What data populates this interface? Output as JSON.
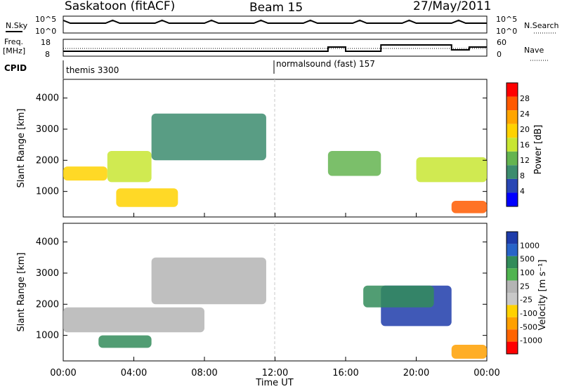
{
  "header": {
    "station": "Saskatoon (fitACF)",
    "beam": "Beam 15",
    "date": "27/May/2011"
  },
  "sky_panel": {
    "left_label": "N.Sky",
    "left_ticks": [
      "10^5",
      "10^0"
    ],
    "right_ticks": [
      "10^5",
      "10^0"
    ],
    "right_label": "N.Search"
  },
  "freq_panel": {
    "left_label_line1": "Freq.",
    "left_label_line2": "[MHz]",
    "left_ticks": [
      "18",
      "8"
    ],
    "right_ticks": [
      "60",
      "0"
    ],
    "right_label": "Nave"
  },
  "cpid": {
    "label": "CPID",
    "segments": [
      "themis 3300",
      "normalsound (fast) 157"
    ]
  },
  "power_panel": {
    "ylabel": "Slant Range [km]",
    "yticks": [
      "4000",
      "3000",
      "2000",
      "1000"
    ],
    "colorbar_label": "Power [dB]",
    "colorbar_ticks": [
      "28",
      "24",
      "20",
      "16",
      "12",
      "8",
      "4"
    ],
    "colorbar_colors": [
      "#ff0000",
      "#ff5a00",
      "#ffa500",
      "#ffd200",
      "#c8e632",
      "#64b450",
      "#3c8c6e",
      "#2846b4",
      "#0000ff"
    ]
  },
  "velocity_panel": {
    "ylabel": "Slant Range [km]",
    "yticks": [
      "4000",
      "3000",
      "2000",
      "1000"
    ],
    "colorbar_label": "Velocity [m s⁻¹]",
    "colorbar_ticks": [
      "1000",
      "500",
      "100",
      "25",
      "-25",
      "-100",
      "-500",
      "-1000"
    ],
    "colorbar_colors": [
      "#1e3caa",
      "#2864c8",
      "#328c5a",
      "#50b450",
      "#b4b4b4",
      "#c8c8c8",
      "#ffd200",
      "#ffa000",
      "#ff6400",
      "#ff0000"
    ]
  },
  "x_axis": {
    "label": "Time UT",
    "ticks": [
      "00:00",
      "04:00",
      "08:00",
      "12:00",
      "16:00",
      "20:00",
      "00:00"
    ]
  },
  "chart_data": {
    "type": "heatmap",
    "x_range_hours": [
      0,
      24
    ],
    "y_range_km": [
      180,
      4600
    ],
    "power_regions": [
      {
        "name": "band-morning",
        "t0": 0,
        "t1": 2.5,
        "r0": 1350,
        "r1": 1800,
        "level": 20
      },
      {
        "name": "band-ramp",
        "t0": 2.5,
        "t1": 5.0,
        "r0": 1300,
        "r1": 2300,
        "level": 14
      },
      {
        "name": "arc-upper",
        "t0": 5.0,
        "t1": 11.5,
        "r0": 2000,
        "r1": 3500,
        "level": 6
      },
      {
        "name": "low-patch",
        "t0": 3.0,
        "t1": 6.5,
        "r0": 500,
        "r1": 1100,
        "level": 18
      },
      {
        "name": "afternoon-band",
        "t0": 15,
        "t1": 18,
        "r0": 1500,
        "r1": 2300,
        "level": 10
      },
      {
        "name": "evening-band",
        "t0": 20,
        "t1": 24,
        "r0": 1300,
        "r1": 2100,
        "level": 16
      },
      {
        "name": "late-hot",
        "t0": 22,
        "t1": 24,
        "r0": 300,
        "r1": 700,
        "level": 26
      }
    ],
    "velocity_regions": [
      {
        "name": "grey-band",
        "t0": 0,
        "t1": 8,
        "r0": 1100,
        "r1": 1900,
        "level": 0
      },
      {
        "name": "grey-arc",
        "t0": 5,
        "t1": 11.5,
        "r0": 2000,
        "r1": 3500,
        "level": 0
      },
      {
        "name": "green-low",
        "t0": 2,
        "t1": 5,
        "r0": 600,
        "r1": 1000,
        "level": 100
      },
      {
        "name": "blue-evening",
        "t0": 18,
        "t1": 22,
        "r0": 1300,
        "r1": 2600,
        "level": 700
      },
      {
        "name": "green-evening",
        "t0": 17,
        "t1": 21,
        "r0": 1900,
        "r1": 2600,
        "level": 200
      },
      {
        "name": "orange-late",
        "t0": 22,
        "t1": 24,
        "r0": 250,
        "r1": 700,
        "level": -300
      }
    ]
  }
}
